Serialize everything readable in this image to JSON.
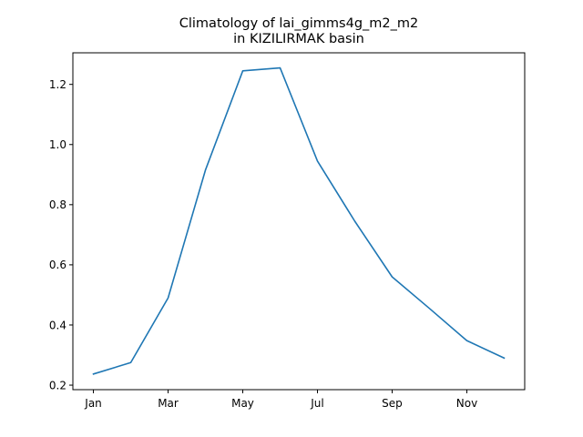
{
  "chart_data": {
    "type": "line",
    "title_lines": [
      "Climatology of lai_gimms4g_m2_m2",
      "in KIZILIRMAK basin"
    ],
    "xlabel": "",
    "ylabel": "",
    "x": [
      1,
      2,
      3,
      4,
      5,
      6,
      7,
      8,
      9,
      10,
      11,
      12
    ],
    "x_ticks": [
      {
        "value": 1,
        "label": "Jan"
      },
      {
        "value": 3,
        "label": "Mar"
      },
      {
        "value": 5,
        "label": "May"
      },
      {
        "value": 7,
        "label": "Jul"
      },
      {
        "value": 9,
        "label": "Sep"
      },
      {
        "value": 11,
        "label": "Nov"
      }
    ],
    "xlim": [
      0.45,
      12.55
    ],
    "y_ticks": [
      0.2,
      0.4,
      0.6,
      0.8,
      1.0,
      1.2
    ],
    "ylim": [
      0.185,
      1.305
    ],
    "grid": false,
    "series": [
      {
        "color": "#1f77b4",
        "values": [
          0.237,
          0.275,
          0.49,
          0.915,
          1.245,
          1.255,
          0.945,
          0.745,
          0.56,
          0.455,
          0.348,
          0.29
        ]
      }
    ]
  }
}
